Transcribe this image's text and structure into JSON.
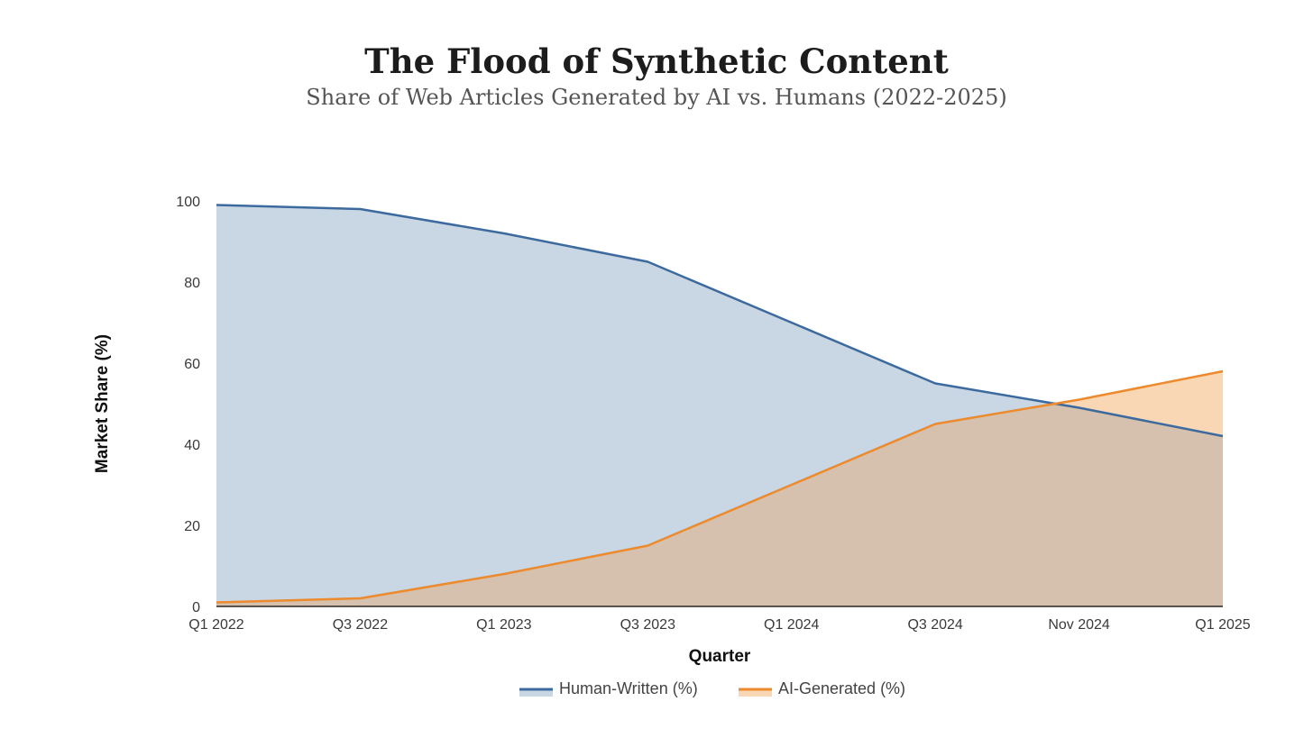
{
  "chart_data": {
    "type": "area",
    "title": "The Flood of Synthetic Content",
    "subtitle": "Share of Web Articles Generated by AI vs. Humans (2022-2025)",
    "xlabel": "Quarter",
    "ylabel": "Market Share (%)",
    "categories": [
      "Q1 2022",
      "Q3 2022",
      "Q1 2023",
      "Q3 2023",
      "Q1 2024",
      "Q3 2024",
      "Nov 2024",
      "Q1 2025"
    ],
    "ylim": [
      0,
      100
    ],
    "yticks": [
      0,
      20,
      40,
      60,
      80,
      100
    ],
    "grid": false,
    "legend_position": "bottom",
    "series": [
      {
        "name": "Human-Written (%)",
        "values": [
          99,
          98,
          92,
          85,
          70,
          55,
          49,
          42
        ],
        "line_color": "#3d6a9e",
        "fill_color": "#c9d7e4"
      },
      {
        "name": "AI-Generated (%)",
        "values": [
          1,
          2,
          8,
          15,
          30,
          45,
          51,
          58
        ],
        "line_color": "#ec8a2d",
        "fill_color": "#f9d7b5"
      }
    ],
    "overlap_fill_color": "#d5c1ad"
  }
}
